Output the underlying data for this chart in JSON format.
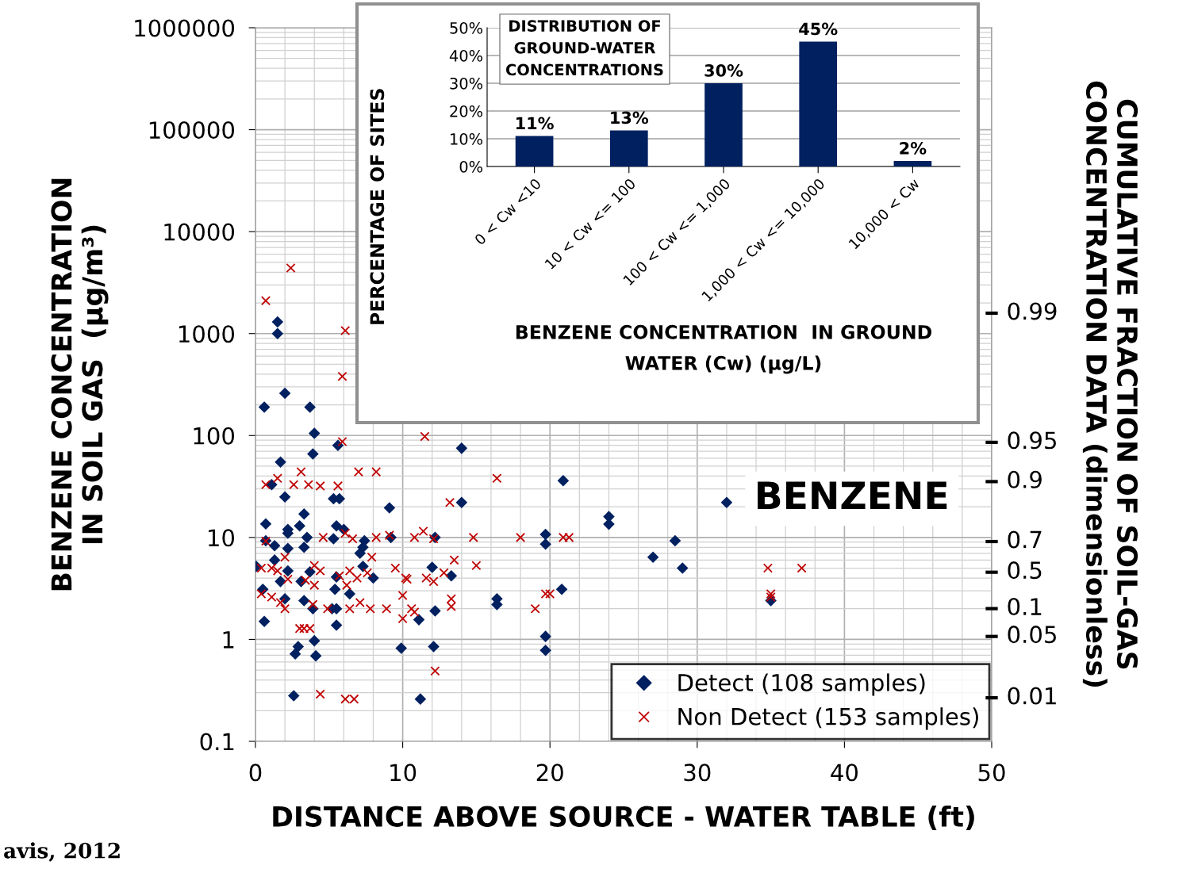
{
  "chart_data": [
    {
      "type": "scatter",
      "xlabel": "DISTANCE ABOVE SOURCE - WATER TABLE (ft)",
      "ylabel": "BENZENE CONCENTRATION\nIN SOIL GAS  (µg/m³)",
      "y2label": "CUMULATIVE FRACTION OF SOIL-GAS\nCONCENTRATION DATA (dimensionless)",
      "annotations": [
        "BENZENE",
        "avis, 2012",
        "0.99",
        "0.95",
        "0.9",
        "0.7",
        "0.5",
        "0.1",
        "0.05",
        "0.01"
      ],
      "xlim": [
        0,
        50
      ],
      "xticks": [
        0,
        10,
        20,
        30,
        40,
        50
      ],
      "ylim": [
        0.1,
        1000000
      ],
      "yticks": [
        0.1,
        1,
        10,
        100,
        1000,
        10000,
        100000,
        1000000
      ],
      "log": "y",
      "grid": true,
      "legend": "bottom right",
      "series": [
        {
          "name": "Detect (108 samples)",
          "color": "#002060",
          "marker": "diamond",
          "x": [
            0.6,
            1.5,
            1.5,
            2.0,
            3.7,
            4.0,
            3.9,
            5.6,
            1.7,
            2.0,
            5.7,
            14.0,
            14.0,
            20.9,
            32.0,
            24.0,
            24.0,
            27.0,
            28.5,
            29.0,
            19.7,
            19.7,
            20.8,
            16.4,
            16.4,
            19.7,
            19.7,
            35.0,
            12.0,
            12.2,
            12.2,
            12.1,
            9.9,
            11.1,
            11.2,
            9.1,
            9.2,
            5.3,
            0.7,
            3.3,
            2.2,
            3.0,
            2.2,
            5.5,
            6.0,
            3.5,
            0.7,
            1.3,
            3.3,
            5.3,
            7.4,
            7.3,
            2.2,
            7.1,
            0.05,
            1.3,
            2.2,
            3.7,
            7.3,
            1.7,
            3.1,
            5.5,
            8.0,
            13.3,
            0.5,
            5.4,
            6.4,
            2.0,
            3.3,
            5.2,
            3.9,
            5.5,
            0.6,
            5.5,
            4.0,
            2.9,
            2.7,
            4.1,
            2.6,
            1.1
          ],
          "values": [
            190,
            1300,
            1000,
            260,
            190,
            105,
            66,
            80,
            55,
            25,
            24,
            75,
            22,
            36,
            22,
            16,
            13.5,
            6.4,
            9.3,
            5,
            10.7,
            8.6,
            3.1,
            2.5,
            2.2,
            1.07,
            0.78,
            2.4,
            5.1,
            10,
            1.9,
            0.85,
            0.82,
            1.56,
            0.26,
            19.5,
            10,
            24,
            13.6,
            17,
            12,
            13,
            11,
            13,
            12,
            10,
            9.3,
            8.3,
            8,
            9.7,
            9.3,
            8,
            7.8,
            7,
            5.2,
            6.0,
            4.7,
            4.6,
            5.2,
            3.7,
            3.7,
            4.1,
            4.0,
            4.2,
            3.1,
            3.1,
            2.8,
            2.5,
            2.4,
            2.0,
            2.0,
            2.0,
            1.5,
            1.38,
            0.97,
            0.85,
            0.72,
            0.69,
            0.28,
            33
          ]
        },
        {
          "name": "Non Detect (153 samples)",
          "color": "#c00000",
          "marker": "cross",
          "x": [
            2.4,
            0.7,
            6.1,
            5.9,
            5.9,
            11.5,
            16.4,
            8.2,
            3.1,
            0.7,
            1.5,
            2.6,
            3.6,
            4.4,
            5.6,
            7.0,
            13.2,
            14.8,
            18.0,
            20.9,
            21.3,
            15.0,
            34.8,
            37.1,
            35.0,
            35.0,
            19.0,
            19.7,
            20.0,
            12.2,
            4.4,
            6.1,
            6.7,
            0.7,
            4.6,
            6.6,
            6.1,
            8.2,
            9.1,
            10.8,
            11.4,
            12.1,
            2.0,
            7.9,
            13.5,
            0.4,
            1.1,
            1.5,
            4.0,
            4.4,
            5.7,
            6.4,
            6.9,
            7.6,
            9.5,
            10.2,
            11.6,
            12.1,
            12.8,
            2.2,
            3.4,
            4.0,
            6.2,
            0.4,
            1.1,
            1.7,
            2.0,
            3.9,
            4.9,
            6.4,
            7.1,
            7.8,
            8.9,
            10.0,
            10.0,
            10.6,
            10.8,
            13.3,
            13.3,
            10.3,
            3.0,
            3.3,
            3.7
          ],
          "values": [
            4400,
            2100,
            1070,
            380,
            87,
            98,
            38,
            44,
            44,
            33,
            38,
            33,
            33,
            32,
            32,
            44,
            22,
            10,
            10,
            10,
            10,
            5.3,
            5,
            5,
            2.8,
            2.6,
            2.0,
            2.8,
            2.8,
            0.49,
            0.29,
            0.26,
            0.26,
            9.2,
            10,
            9.7,
            11,
            10,
            10.5,
            10,
            11.5,
            9.7,
            6.4,
            6.4,
            6.0,
            5,
            5,
            4.7,
            5.3,
            4.7,
            4.2,
            4.7,
            4.0,
            4.5,
            5,
            4.0,
            4.0,
            3.7,
            4.5,
            3.9,
            3.8,
            3.4,
            3.4,
            2.8,
            2.6,
            2.3,
            2.0,
            2.2,
            2.0,
            2.0,
            2.3,
            2.0,
            2.0,
            2.7,
            1.6,
            2.0,
            1.85,
            2.5,
            2.1,
            3.9,
            1.28,
            1.28,
            1.28
          ]
        }
      ]
    },
    {
      "type": "bar",
      "title": "DISTRIBUTION OF\nGROUND-WATER\nCONCENTRATIONS",
      "ylabel": "PERCENTAGE OF SITES",
      "xlabel": "BENZENE CONCENTRATION  IN GROUND\nWATER (Cw) (µg/L)",
      "categories": [
        "0 < Cw <10",
        "10 < Cw <= 100",
        "100 < Cw <= 1,000",
        "1,000 < Cw <= 10,000",
        "10,000 < Cw"
      ],
      "values": [
        11,
        13,
        30,
        45,
        2
      ],
      "value_labels": [
        "11%",
        "13%",
        "30%",
        "45%",
        "2%"
      ],
      "color": "#002060",
      "ylim": [
        0,
        50
      ],
      "yticks": [
        {
          "value": 0,
          "label": "0%"
        },
        {
          "value": 10,
          "label": "10%"
        },
        {
          "value": 20,
          "label": "20%"
        },
        {
          "value": 30,
          "label": "30%"
        },
        {
          "value": 40,
          "label": "40%"
        },
        {
          "value": 50,
          "label": "50%"
        }
      ],
      "grid": "y",
      "legend": false
    }
  ]
}
